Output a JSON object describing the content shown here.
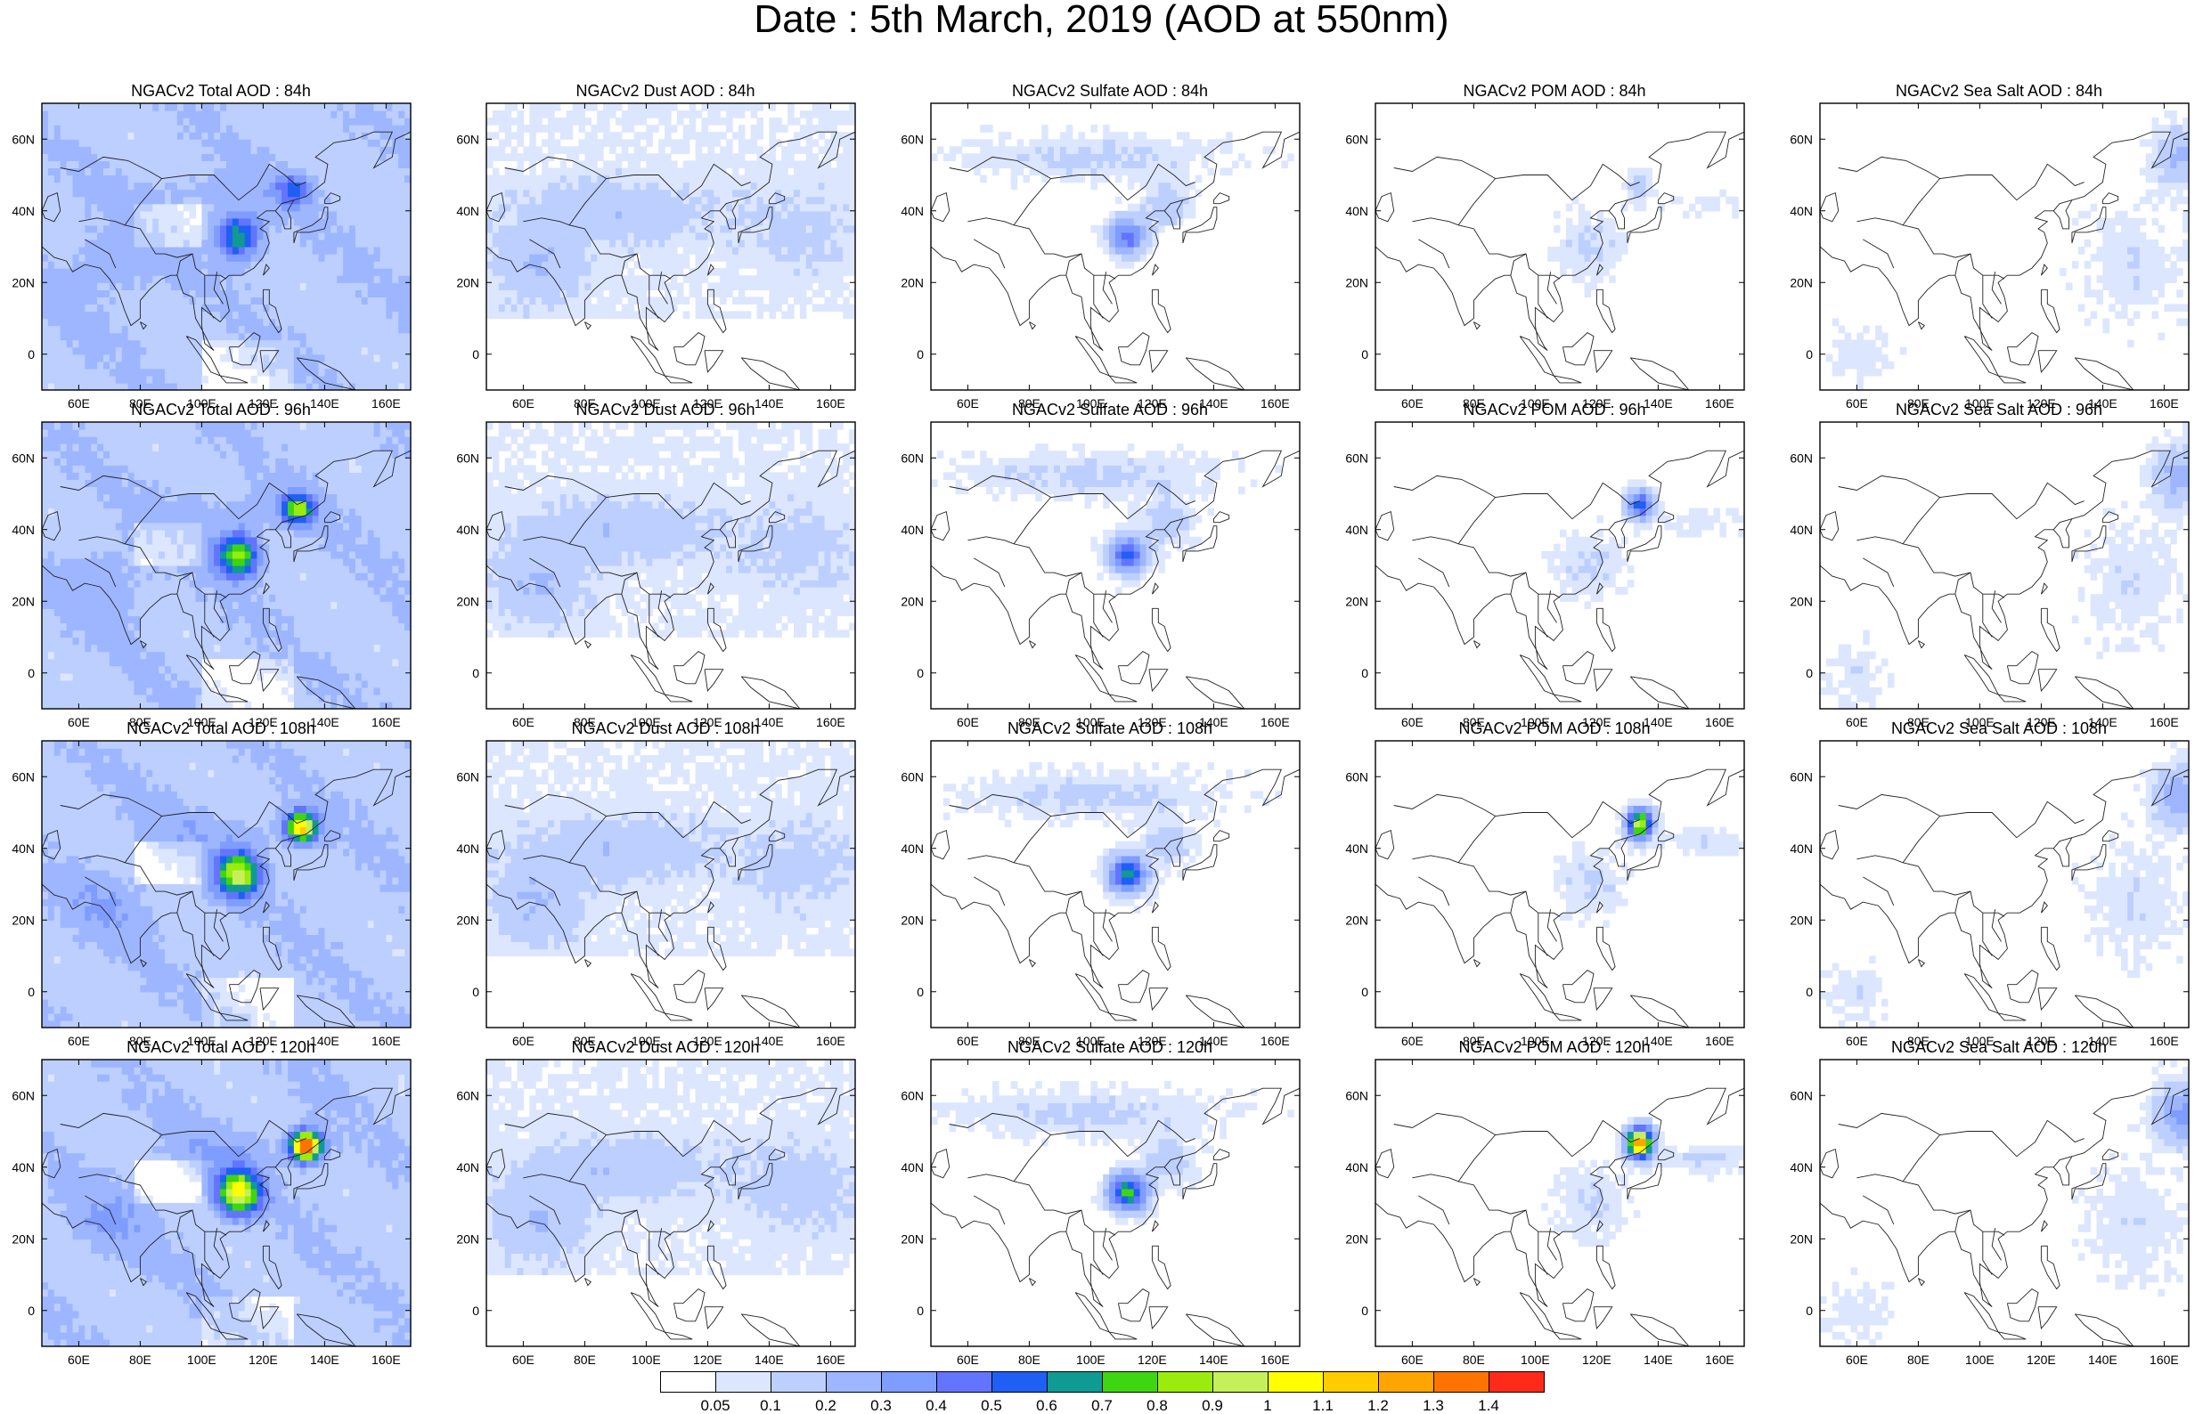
{
  "title": "Date : 5th March, 2019 (AOD at 550nm)",
  "panels": [
    {
      "title": "NGACv2 Total AOD : 84h",
      "species": "total",
      "forecast_hour": 84
    },
    {
      "title": "NGACv2 Dust AOD : 84h",
      "species": "dust",
      "forecast_hour": 84
    },
    {
      "title": "NGACv2 Sulfate AOD : 84h",
      "species": "sulfate",
      "forecast_hour": 84
    },
    {
      "title": "NGACv2 POM AOD : 84h",
      "species": "pom",
      "forecast_hour": 84
    },
    {
      "title": "NGACv2 Sea Salt AOD : 84h",
      "species": "seasalt",
      "forecast_hour": 84
    },
    {
      "title": "NGACv2 Total AOD : 96h",
      "species": "total",
      "forecast_hour": 96
    },
    {
      "title": "NGACv2 Dust AOD : 96h",
      "species": "dust",
      "forecast_hour": 96
    },
    {
      "title": "NGACv2 Sulfate AOD : 96h",
      "species": "sulfate",
      "forecast_hour": 96
    },
    {
      "title": "NGACv2 POM AOD : 96h",
      "species": "pom",
      "forecast_hour": 96
    },
    {
      "title": "NGACv2 Sea Salt AOD : 96h",
      "species": "seasalt",
      "forecast_hour": 96
    },
    {
      "title": "NGACv2 Total AOD : 108h",
      "species": "total",
      "forecast_hour": 108
    },
    {
      "title": "NGACv2 Dust AOD : 108h",
      "species": "dust",
      "forecast_hour": 108
    },
    {
      "title": "NGACv2 Sulfate AOD : 108h",
      "species": "sulfate",
      "forecast_hour": 108
    },
    {
      "title": "NGACv2 POM AOD : 108h",
      "species": "pom",
      "forecast_hour": 108
    },
    {
      "title": "NGACv2 Sea Salt AOD : 108h",
      "species": "seasalt",
      "forecast_hour": 108
    },
    {
      "title": "NGACv2 Total AOD : 120h",
      "species": "total",
      "forecast_hour": 120
    },
    {
      "title": "NGACv2 Dust AOD : 120h",
      "species": "dust",
      "forecast_hour": 120
    },
    {
      "title": "NGACv2 Sulfate AOD : 120h",
      "species": "sulfate",
      "forecast_hour": 120
    },
    {
      "title": "NGACv2 POM AOD : 120h",
      "species": "pom",
      "forecast_hour": 120
    },
    {
      "title": "NGACv2 Sea Salt  AOD : 120h",
      "species": "seasalt",
      "forecast_hour": 120
    }
  ],
  "map": {
    "lon_range": [
      48,
      168
    ],
    "lat_range": [
      -10,
      70
    ],
    "lon_ticks": [
      "60E",
      "80E",
      "100E",
      "120E",
      "140E",
      "160E"
    ],
    "lon_tick_values": [
      60,
      80,
      100,
      120,
      140,
      160
    ],
    "lat_ticks": [
      "60N",
      "40N",
      "20N",
      "0"
    ],
    "lat_tick_values": [
      60,
      40,
      20,
      0
    ]
  },
  "colorbar": {
    "colors": [
      "#ffffff",
      "#dce6ff",
      "#bccfff",
      "#9db6ff",
      "#7f9cff",
      "#6374ff",
      "#1f5ff4",
      "#0f9a93",
      "#3dd611",
      "#99ec0c",
      "#c6f05a",
      "#ffff00",
      "#ffcc00",
      "#ffa500",
      "#ff7400",
      "#ff2a1a"
    ],
    "labels": [
      "0.05",
      "0.1",
      "0.2",
      "0.3",
      "0.4",
      "0.5",
      "0.6",
      "0.7",
      "0.8",
      "0.9",
      "1",
      "1.1",
      "1.2",
      "1.3",
      "1.4"
    ]
  }
}
